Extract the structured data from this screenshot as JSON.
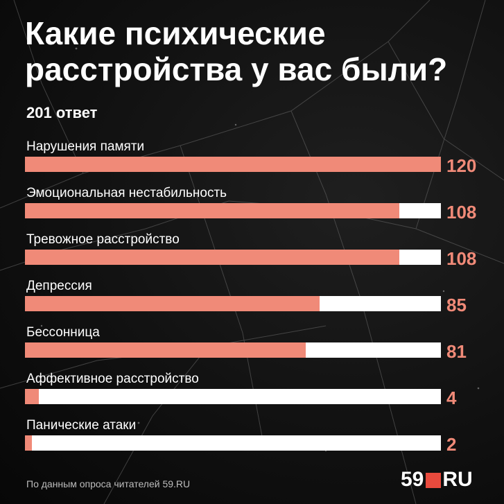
{
  "header": {
    "title": "Какие психические расстройства у вас были?",
    "subtitle": "201 ответ"
  },
  "footer": {
    "source": "По данным опроса читателей 59.RU",
    "logo_left": "59",
    "logo_right": "RU"
  },
  "colors": {
    "bar_fill": "#f08a78",
    "bar_track": "#ffffff",
    "value_text": "#f08a78",
    "logo_square": "#e84a3d",
    "background": "#111111"
  },
  "chart_data": {
    "type": "bar",
    "orientation": "horizontal",
    "xlim": [
      0,
      120
    ],
    "categories": [
      "Нарушения памяти",
      "Эмоциональная нестабильность",
      "Тревожное расстройство",
      "Депрессия",
      "Бессонница",
      "Аффективное расстройство",
      "Панические атаки"
    ],
    "values": [
      120,
      108,
      108,
      85,
      81,
      4,
      2
    ]
  }
}
